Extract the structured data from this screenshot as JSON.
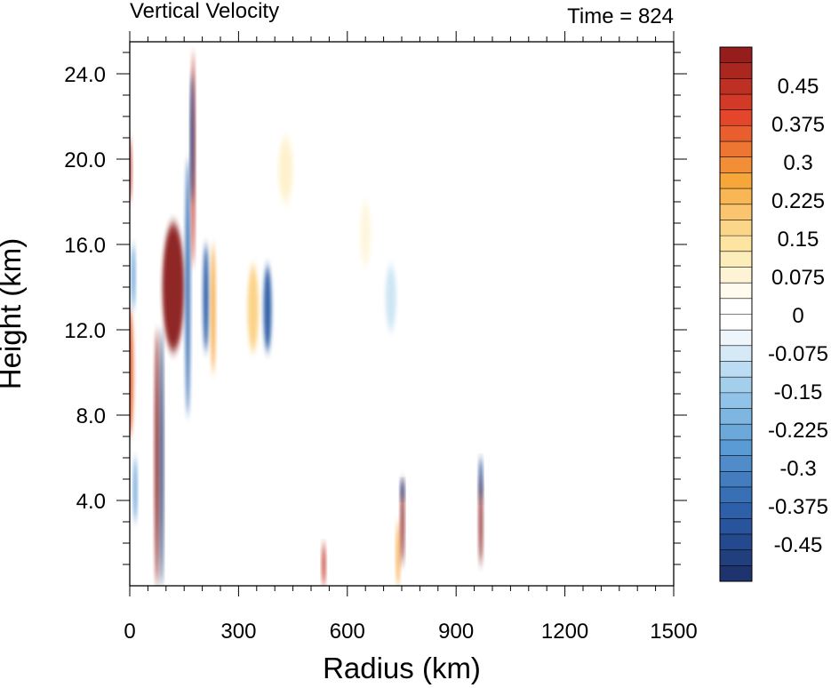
{
  "chart_data": {
    "type": "heatmap",
    "title": "Vertical Velocity",
    "time_label": "Time = 824",
    "xlabel": "Radius (km)",
    "ylabel": "Height (km)",
    "xlim": [
      0,
      1500
    ],
    "ylim": [
      0,
      25.5
    ],
    "x_ticks": [
      "0",
      "300",
      "600",
      "900",
      "1200",
      "1500"
    ],
    "y_ticks": [
      "4.0",
      "8.0",
      "12.0",
      "16.0",
      "20.0",
      "24.0"
    ],
    "colorbar": {
      "labels": [
        "0.45",
        "0.375",
        "0.3",
        "0.225",
        "0.15",
        "0.075",
        "0",
        "-0.075",
        "-0.15",
        "-0.225",
        "-0.3",
        "-0.375",
        "-0.45"
      ],
      "max_color": "#8b1a1a",
      "zero_color": "#ffffff",
      "min_color": "#1b2f66"
    },
    "features": [
      {
        "x": 75,
        "y": [
          0,
          12
        ],
        "w": 12,
        "value": 0.6
      },
      {
        "x": 88,
        "y": [
          0,
          12
        ],
        "w": 6,
        "value": -0.6
      },
      {
        "x": 120,
        "y": [
          11,
          17
        ],
        "w": 60,
        "value": 0.6
      },
      {
        "x": 160,
        "y": [
          8,
          20
        ],
        "w": 14,
        "value": -0.4
      },
      {
        "x": 175,
        "y": [
          15,
          25
        ],
        "w": 6,
        "value": 0.5
      },
      {
        "x": 172,
        "y": [
          18,
          24
        ],
        "w": 4,
        "value": -0.5
      },
      {
        "x": 0,
        "y": [
          7,
          13
        ],
        "w": 20,
        "value": 0.4
      },
      {
        "x": 0,
        "y": [
          18,
          21
        ],
        "w": 10,
        "value": 0.5
      },
      {
        "x": 10,
        "y": [
          13,
          16
        ],
        "w": 10,
        "value": -0.3
      },
      {
        "x": 15,
        "y": [
          3,
          6
        ],
        "w": 10,
        "value": -0.3
      },
      {
        "x": 210,
        "y": [
          11,
          16
        ],
        "w": 16,
        "value": -0.45
      },
      {
        "x": 230,
        "y": [
          10,
          16
        ],
        "w": 12,
        "value": 0.3
      },
      {
        "x": 340,
        "y": [
          11,
          15
        ],
        "w": 30,
        "value": 0.2
      },
      {
        "x": 380,
        "y": [
          11,
          15
        ],
        "w": 22,
        "value": -0.45
      },
      {
        "x": 535,
        "y": [
          0,
          2
        ],
        "w": 6,
        "value": 0.5
      },
      {
        "x": 740,
        "y": [
          0,
          3
        ],
        "w": 8,
        "value": 0.3
      },
      {
        "x": 752,
        "y": [
          1,
          5
        ],
        "w": 6,
        "value": 0.6
      },
      {
        "x": 752,
        "y": [
          4,
          5
        ],
        "w": 4,
        "value": -0.45
      },
      {
        "x": 968,
        "y": [
          1,
          5
        ],
        "w": 10,
        "value": 0.6
      },
      {
        "x": 968,
        "y": [
          4,
          6
        ],
        "w": 8,
        "value": -0.5
      },
      {
        "x": 720,
        "y": [
          12,
          15
        ],
        "w": 30,
        "value": -0.1
      },
      {
        "x": 430,
        "y": [
          18,
          21
        ],
        "w": 40,
        "value": 0.1
      },
      {
        "x": 650,
        "y": [
          15,
          18
        ],
        "w": 30,
        "value": 0.075
      }
    ]
  }
}
